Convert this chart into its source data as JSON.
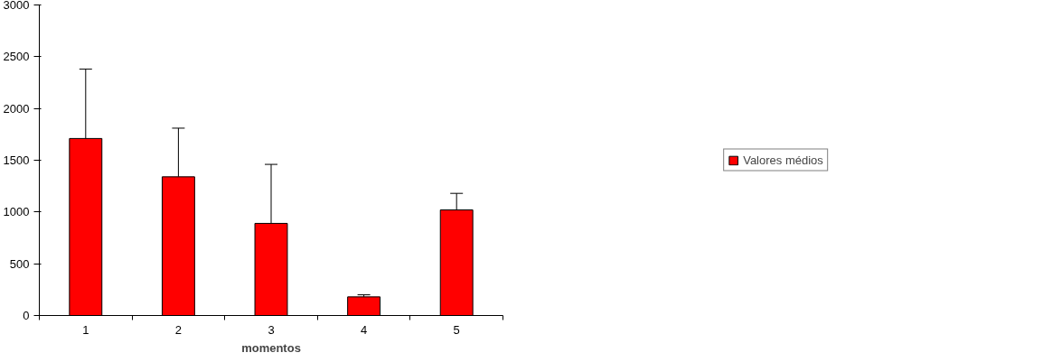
{
  "chart_data": {
    "type": "bar",
    "xlabel": "momentos",
    "categories": [
      "1",
      "2",
      "3",
      "4",
      "5"
    ],
    "series": [
      {
        "name": "Valores médios",
        "color": "#ff0000",
        "values": [
          1710,
          1340,
          890,
          180,
          1020
        ],
        "errors": [
          [
            1710,
            2380
          ],
          [
            1340,
            1810
          ],
          [
            890,
            1460
          ],
          [
            180,
            200
          ],
          [
            1020,
            1180
          ]
        ]
      }
    ],
    "ylim": [
      0,
      3000
    ],
    "yticks": [
      0,
      500,
      1000,
      1500,
      2000,
      2500,
      3000
    ],
    "grid": false,
    "legend": "right"
  }
}
